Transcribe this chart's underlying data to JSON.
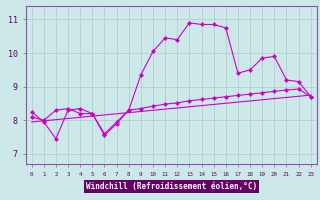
{
  "background_color": "#cce8e8",
  "plot_bg_color": "#cce8e8",
  "grid_color": "#aacccc",
  "line_color": "#cc00cc",
  "marker": "D",
  "xlabel": "Windchill (Refroidissement éolien,°C)",
  "ylabel_values": [
    7,
    8,
    9,
    10,
    11
  ],
  "xlim": [
    -0.5,
    23.5
  ],
  "ylim": [
    6.7,
    11.4
  ],
  "line1_x": [
    0,
    1,
    2,
    3,
    4,
    5,
    6,
    7,
    8,
    9,
    10,
    11,
    12,
    13,
    14,
    15,
    16,
    17,
    18,
    19,
    20,
    21,
    22,
    23
  ],
  "line1_y": [
    8.25,
    7.95,
    7.45,
    8.3,
    8.35,
    8.2,
    7.55,
    7.9,
    8.3,
    9.35,
    10.05,
    10.45,
    10.4,
    10.9,
    10.85,
    10.85,
    10.75,
    9.4,
    9.5,
    9.85,
    9.9,
    9.2,
    9.15,
    8.7
  ],
  "line2_x": [
    0,
    1,
    2,
    3,
    4,
    5,
    6,
    7,
    8,
    9,
    10,
    11,
    12,
    13,
    14,
    15,
    16,
    17,
    18,
    19,
    20,
    21,
    22,
    23
  ],
  "line2_y": [
    8.1,
    8.0,
    8.3,
    8.35,
    8.2,
    8.2,
    7.6,
    7.95,
    8.3,
    8.35,
    8.42,
    8.48,
    8.52,
    8.58,
    8.62,
    8.66,
    8.7,
    8.74,
    8.78,
    8.82,
    8.86,
    8.9,
    8.93,
    8.7
  ],
  "line3_x": [
    0,
    23
  ],
  "line3_y": [
    7.95,
    8.75
  ],
  "xlabel_bg": "#660066",
  "xlabel_color": "#ffffff",
  "tick_color": "#660066",
  "spine_color": "#8855aa",
  "figsize": [
    3.2,
    2.0
  ],
  "dpi": 100
}
